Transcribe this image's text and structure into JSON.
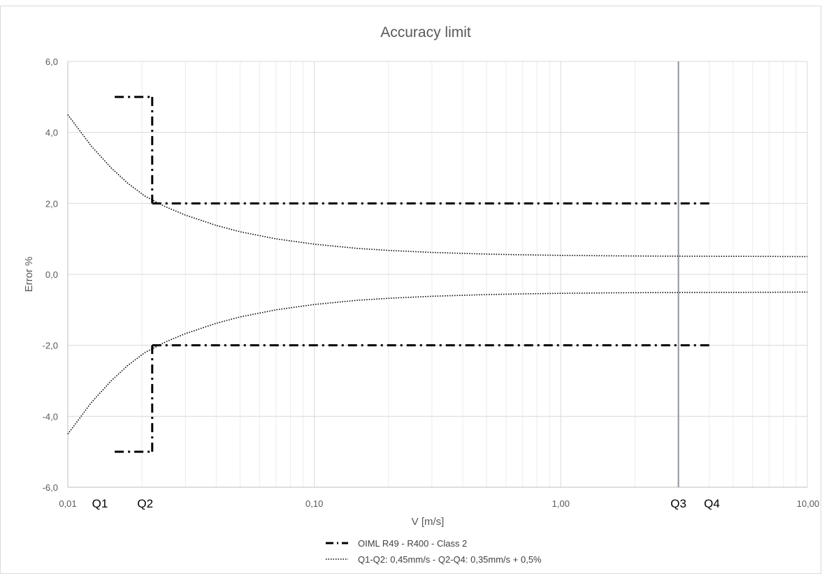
{
  "chart_data": {
    "type": "line",
    "title": "Accuracy limit",
    "xlabel": "V [m/s]",
    "ylabel": "Error %",
    "x_scale": "log",
    "xlim": [
      0.01,
      10
    ],
    "ylim": [
      -6,
      6
    ],
    "grid": true,
    "legend_position": "bottom",
    "x_tick_labels": [
      {
        "value": 0.01,
        "label": "0,01"
      },
      {
        "value": 0.1,
        "label": "0,10"
      },
      {
        "value": 1,
        "label": "1,00"
      },
      {
        "value": 10,
        "label": "10,00"
      }
    ],
    "y_tick_labels": [
      {
        "value": 6,
        "label": "6,0"
      },
      {
        "value": 4,
        "label": "4,0"
      },
      {
        "value": 2,
        "label": "2,0"
      },
      {
        "value": 0,
        "label": "0,0"
      },
      {
        "value": -2,
        "label": "-2,0"
      },
      {
        "value": -4,
        "label": "-4,0"
      },
      {
        "value": -6,
        "label": "-6,0"
      }
    ],
    "markers": [
      {
        "label": "Q1",
        "x": 0.0135
      },
      {
        "label": "Q2",
        "x": 0.0206
      },
      {
        "label": "Q3",
        "x": 3.0
      },
      {
        "label": "Q4",
        "x": 4.1
      }
    ],
    "vertical_line": {
      "x": 3.0,
      "color": "#909498"
    },
    "series": [
      {
        "name": "OIML R49 - R400 - Class 2",
        "style": "dash-dot",
        "color": "#000000",
        "segments": [
          {
            "x": [
              0.0155,
              0.022
            ],
            "y": [
              5,
              5
            ]
          },
          {
            "x": [
              0.022,
              0.022
            ],
            "y": [
              5,
              2
            ]
          },
          {
            "x": [
              0.022,
              4.0
            ],
            "y": [
              2,
              2
            ]
          },
          {
            "x": [
              0.0155,
              0.022
            ],
            "y": [
              -5,
              -5
            ]
          },
          {
            "x": [
              0.022,
              0.022
            ],
            "y": [
              -5,
              -2
            ]
          },
          {
            "x": [
              0.022,
              4.0
            ],
            "y": [
              -2,
              -2
            ]
          }
        ]
      },
      {
        "name": "Q1-Q2: 0,45mm/s - Q2-Q4: 0,35mm/s + 0,5%",
        "style": "dotted",
        "color": "#000000",
        "x": [
          0.01,
          0.0125,
          0.015,
          0.0175,
          0.0206,
          0.025,
          0.03,
          0.04,
          0.05,
          0.07,
          0.1,
          0.15,
          0.2,
          0.3,
          0.5,
          0.7,
          1.0,
          1.5,
          2.0,
          3.0,
          5.0,
          7.0,
          10.0
        ],
        "y_upper": [
          4.5,
          3.6,
          3.0,
          2.57,
          2.2,
          1.9,
          1.67,
          1.38,
          1.2,
          1.0,
          0.85,
          0.73,
          0.675,
          0.617,
          0.57,
          0.55,
          0.535,
          0.523,
          0.518,
          0.512,
          0.507,
          0.505,
          0.5
        ],
        "y_lower": [
          -4.5,
          -3.6,
          -3.0,
          -2.57,
          -2.2,
          -1.9,
          -1.67,
          -1.38,
          -1.2,
          -1.0,
          -0.85,
          -0.73,
          -0.675,
          -0.617,
          -0.57,
          -0.55,
          -0.535,
          -0.523,
          -0.518,
          -0.512,
          -0.507,
          -0.505,
          -0.5
        ]
      }
    ]
  }
}
